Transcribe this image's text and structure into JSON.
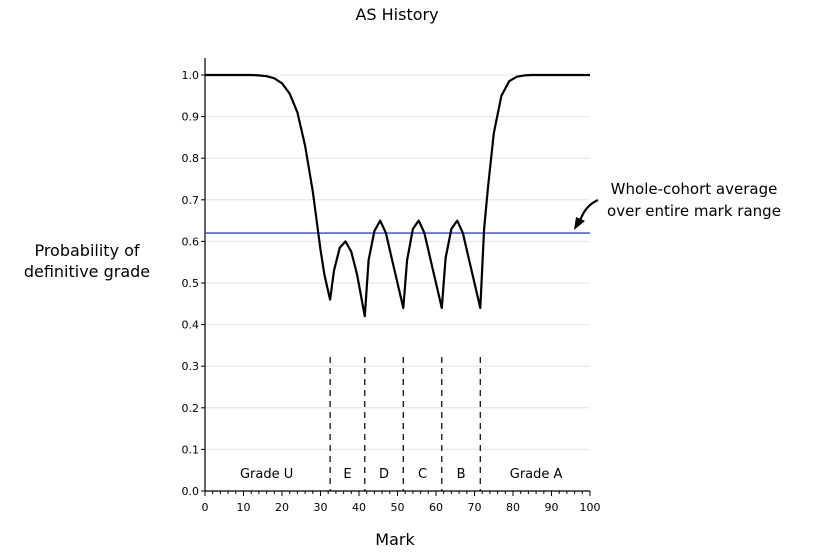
{
  "chart_data": {
    "type": "line",
    "title": "AS History",
    "xlabel": "Mark",
    "ylabel": [
      "Probability of",
      "definitive grade"
    ],
    "xlim": [
      0,
      100
    ],
    "ylim": [
      0,
      1
    ],
    "xticks": [
      "0",
      "10",
      "20",
      "30",
      "40",
      "50",
      "60",
      "70",
      "80",
      "90",
      "100"
    ],
    "yticks": [
      "0.0",
      "0.1",
      "0.2",
      "0.3",
      "0.4",
      "0.5",
      "0.6",
      "0.7",
      "0.8",
      "0.9",
      "1.0"
    ],
    "grid": "horizontal",
    "series": [
      {
        "color": "#000000",
        "x": [
          0,
          10,
          12,
          14,
          16,
          18,
          20,
          22,
          24,
          26,
          28,
          30,
          31,
          32.5,
          33.5,
          35,
          36.5,
          38,
          39.5,
          41.5,
          42.5,
          44,
          45.5,
          47,
          49,
          51.5,
          52.5,
          54,
          55.5,
          57,
          59,
          61.5,
          62.5,
          64,
          65.5,
          67,
          69,
          71.5,
          72.5,
          73.5,
          75,
          77,
          79,
          81,
          83,
          85,
          87,
          89,
          100
        ],
        "y": [
          1.0,
          1.0,
          1.0,
          0.999,
          0.997,
          0.992,
          0.98,
          0.955,
          0.91,
          0.83,
          0.72,
          0.58,
          0.52,
          0.46,
          0.53,
          0.585,
          0.6,
          0.575,
          0.52,
          0.42,
          0.555,
          0.625,
          0.65,
          0.62,
          0.54,
          0.44,
          0.555,
          0.63,
          0.65,
          0.62,
          0.54,
          0.44,
          0.56,
          0.63,
          0.65,
          0.62,
          0.54,
          0.44,
          0.63,
          0.73,
          0.86,
          0.95,
          0.985,
          0.996,
          0.999,
          1.0,
          1.0,
          1.0,
          1.0
        ]
      }
    ],
    "reference_line": {
      "y": 0.62,
      "color": "#3344cc",
      "label": [
        "Whole-cohort average",
        "over entire mark range"
      ]
    },
    "grade_boundaries": [
      32.5,
      41.5,
      51.5,
      61.5,
      71.5
    ],
    "grade_regions": [
      {
        "label": "Grade U",
        "center": 16
      },
      {
        "label": "E",
        "center": 37
      },
      {
        "label": "D",
        "center": 46.5
      },
      {
        "label": "C",
        "center": 56.5
      },
      {
        "label": "B",
        "center": 66.5
      },
      {
        "label": "Grade A",
        "center": 86
      }
    ]
  }
}
